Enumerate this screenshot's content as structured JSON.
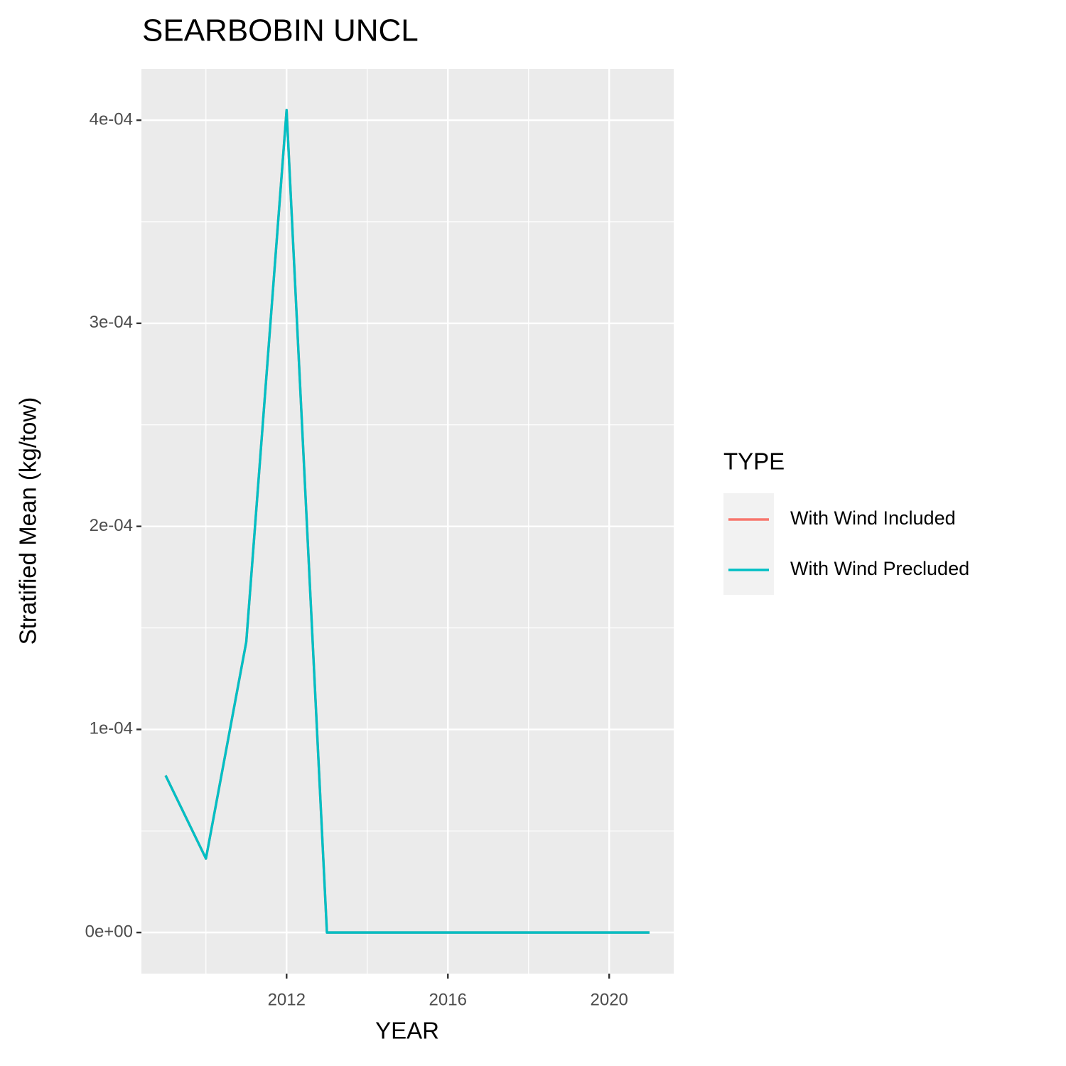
{
  "chart_data": {
    "type": "line",
    "title": "SEARBOBIN UNCL",
    "x_label": "YEAR",
    "y_label": "Stratified Mean (kg/tow)",
    "x": [
      2009,
      2010,
      2011,
      2012,
      2013,
      2014,
      2015,
      2016,
      2017,
      2018,
      2019,
      2020,
      2021
    ],
    "series": [
      {
        "name": "With Wind Included",
        "color": "#F8766D",
        "values": [
          7.73e-05,
          3.64e-05,
          0.0001431,
          0.000405,
          0,
          0,
          0,
          0,
          0,
          0,
          0,
          0,
          0
        ]
      },
      {
        "name": "With Wind Precluded",
        "color": "#00BFC4",
        "values": [
          7.73e-05,
          3.64e-05,
          0.0001431,
          0.000405,
          0,
          0,
          0,
          0,
          0,
          0,
          0,
          0,
          0
        ]
      }
    ],
    "xlim": [
      2008.4,
      2021.6
    ],
    "xticks": [
      2012,
      2016,
      2020
    ],
    "ylim": [
      -2.025e-05,
      0.00042525
    ],
    "yticks": [
      {
        "value": 0,
        "label": "0e+00"
      },
      {
        "value": 0.0001,
        "label": "1e-04"
      },
      {
        "value": 0.0002,
        "label": "2e-04"
      },
      {
        "value": 0.0003,
        "label": "3e-04"
      },
      {
        "value": 0.0004,
        "label": "4e-04"
      }
    ],
    "legend_title": "TYPE",
    "grid": true
  }
}
